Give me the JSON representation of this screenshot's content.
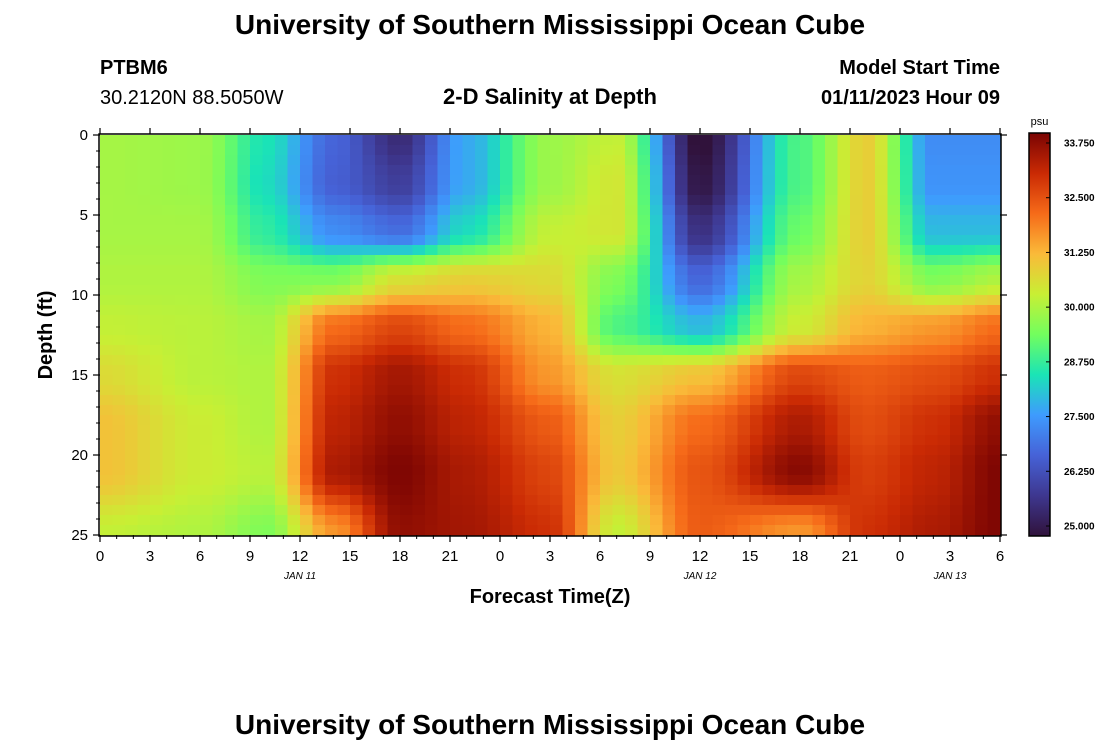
{
  "header": {
    "title": "University of Southern Mississippi Ocean Cube",
    "station_id": "PTBM6",
    "station_coords": "30.2120N  88.5050W",
    "headline": "2-D Salinity at Depth",
    "model_start_label": "Model Start Time",
    "model_start_value": "01/11/2023 Hour 09"
  },
  "footer": {
    "title": "University of Southern Mississippi Ocean Cube"
  },
  "chart_data": {
    "type": "heatmap",
    "title": "2-D Salinity at Depth",
    "xlabel": "Forecast Time(Z)",
    "ylabel": "Depth (ft)",
    "x_tick_labels": [
      "0",
      "3",
      "6",
      "9",
      "12",
      "15",
      "18",
      "21",
      "0",
      "3",
      "6",
      "9",
      "12",
      "15",
      "18",
      "21",
      "0",
      "3",
      "6"
    ],
    "x_date_labels": [
      {
        "label": "JAN 11",
        "at_hour": 12
      },
      {
        "label": "JAN 12",
        "at_hour": 36
      },
      {
        "label": "JAN 13",
        "at_hour": 51
      }
    ],
    "x_hours_range": [
      0,
      54
    ],
    "y_ticks": [
      0,
      5,
      10,
      15,
      20,
      25
    ],
    "ylim": [
      0,
      25
    ],
    "y_reversed": true,
    "colorbar": {
      "unit": "psu",
      "range": [
        25.0,
        33.75
      ],
      "ticks": [
        "25.000",
        "26.250",
        "27.500",
        "28.750",
        "30.000",
        "31.250",
        "32.500",
        "33.750"
      ],
      "colors": [
        "#30123b",
        "#3e378f",
        "#4662d7",
        "#3e9bfe",
        "#1ae4b6",
        "#72fe5e",
        "#c8ef34",
        "#faba39",
        "#f66b19",
        "#ca2a04",
        "#7a0403"
      ]
    },
    "x_hours": [
      0,
      6,
      10,
      14,
      18,
      22,
      27,
      31,
      36,
      42,
      46,
      50,
      54
    ],
    "depths_ft": [
      0,
      3,
      6,
      9,
      12,
      15,
      18,
      21,
      25
    ],
    "salinity_psu": [
      [
        29.9,
        29.8,
        28.5,
        26.8,
        25.6,
        27.8,
        29.8,
        30.2,
        24.9,
        29.0,
        30.8,
        27.4,
        27.4
      ],
      [
        29.9,
        29.8,
        28.4,
        26.7,
        26.0,
        27.8,
        29.8,
        30.4,
        25.1,
        29.0,
        30.8,
        27.5,
        27.5
      ],
      [
        29.9,
        29.9,
        28.7,
        27.4,
        26.9,
        28.4,
        30.2,
        30.4,
        25.7,
        29.3,
        30.8,
        28.0,
        28.0
      ],
      [
        30.0,
        30.0,
        29.5,
        29.5,
        30.5,
        30.8,
        30.6,
        29.5,
        26.8,
        29.9,
        30.7,
        29.5,
        30.0
      ],
      [
        30.2,
        30.1,
        29.9,
        32.0,
        32.5,
        32.0,
        31.2,
        29.0,
        28.0,
        30.3,
        31.2,
        31.5,
        32.0
      ],
      [
        30.6,
        30.1,
        30.0,
        32.8,
        33.3,
        32.8,
        31.5,
        30.5,
        31.0,
        32.5,
        32.2,
        32.4,
        32.8
      ],
      [
        31.0,
        30.3,
        30.0,
        33.0,
        33.5,
        33.0,
        32.2,
        30.8,
        32.0,
        33.2,
        32.4,
        32.8,
        33.5
      ],
      [
        31.0,
        30.3,
        30.1,
        33.2,
        33.7,
        33.2,
        32.5,
        30.9,
        32.3,
        33.6,
        32.6,
        33.0,
        33.7
      ],
      [
        30.2,
        30.0,
        29.5,
        31.5,
        33.5,
        33.3,
        32.8,
        30.2,
        32.2,
        31.5,
        32.8,
        33.2,
        33.7
      ]
    ]
  }
}
